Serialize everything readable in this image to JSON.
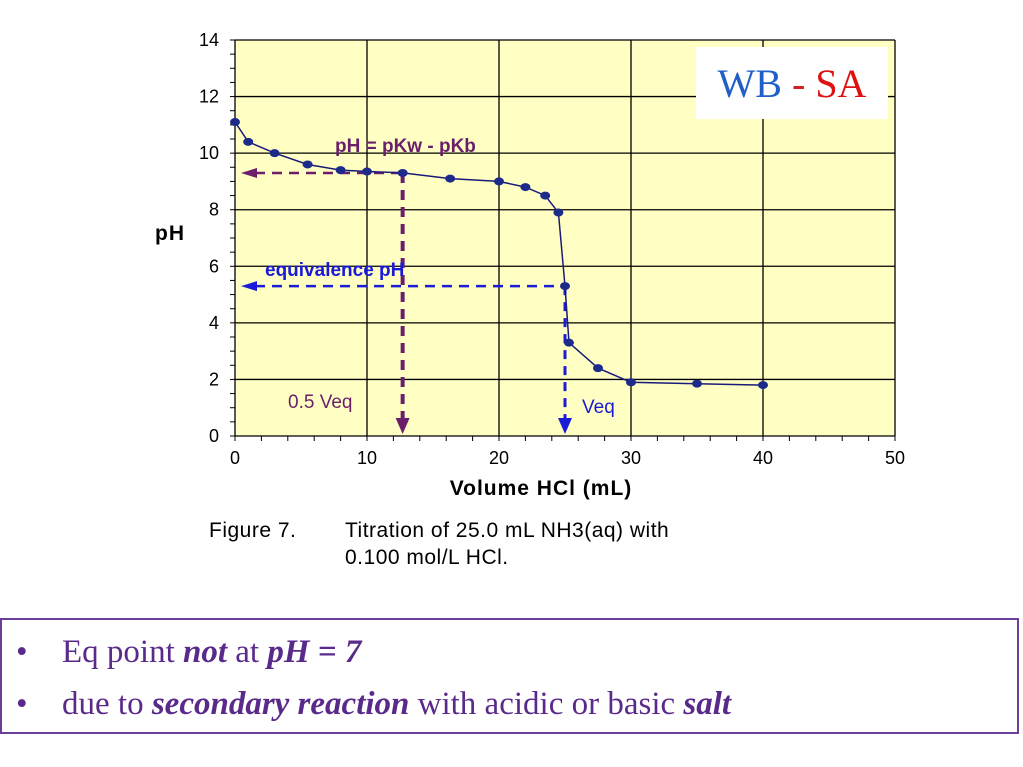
{
  "badge": {
    "left": "WB",
    "separator": "-",
    "right": "SA"
  },
  "caption": {
    "label": "Figure 7.",
    "line1": "Titration of 25.0 mL NH3(aq) with",
    "line2": "0.100 mol/L HCl."
  },
  "notes": [
    {
      "bullet": "•",
      "parts": [
        "Eq point ",
        "not",
        " at ",
        "pH = 7"
      ]
    },
    {
      "bullet": "•",
      "parts": [
        "due to ",
        "secondary reaction",
        " with acidic or basic ",
        "salt"
      ]
    }
  ],
  "colors": {
    "plot_bg": "#ffffc4",
    "curve": "#1a1a7a",
    "point": "#1c2b8a",
    "half_eq": "#6b1f6b",
    "equivalence": "#1a1ad8"
  },
  "chart_data": {
    "type": "line",
    "xlabel": "Volume HCl  (mL)",
    "ylabel": "pH",
    "xlim": [
      0,
      50
    ],
    "ylim": [
      0,
      14
    ],
    "x_ticks": [
      0,
      10,
      20,
      30,
      40,
      50
    ],
    "y_ticks": [
      0,
      2,
      4,
      6,
      8,
      10,
      12,
      14
    ],
    "grid": true,
    "series": [
      {
        "points": [
          [
            0,
            11.1
          ],
          [
            1,
            10.4
          ],
          [
            3,
            10.0
          ],
          [
            5.5,
            9.6
          ],
          [
            8,
            9.4
          ],
          [
            10,
            9.35
          ],
          [
            12.7,
            9.3
          ],
          [
            16.3,
            9.1
          ],
          [
            20,
            9.0
          ],
          [
            22,
            8.8
          ],
          [
            23.5,
            8.5
          ],
          [
            24.5,
            7.9
          ],
          [
            25,
            5.3
          ],
          [
            25.3,
            3.3
          ],
          [
            27.5,
            2.4
          ],
          [
            30,
            1.9
          ],
          [
            35,
            1.85
          ],
          [
            40,
            1.8
          ]
        ]
      }
    ],
    "annotations": {
      "half_equivalence": {
        "x": 12.7,
        "y": 9.3,
        "label_ph": "pH = pKw - pKb",
        "label_v": "0.5 Veq"
      },
      "equivalence": {
        "x": 25,
        "y": 5.3,
        "label_ph": "equivalence pH",
        "label_v": "Veq"
      }
    }
  }
}
